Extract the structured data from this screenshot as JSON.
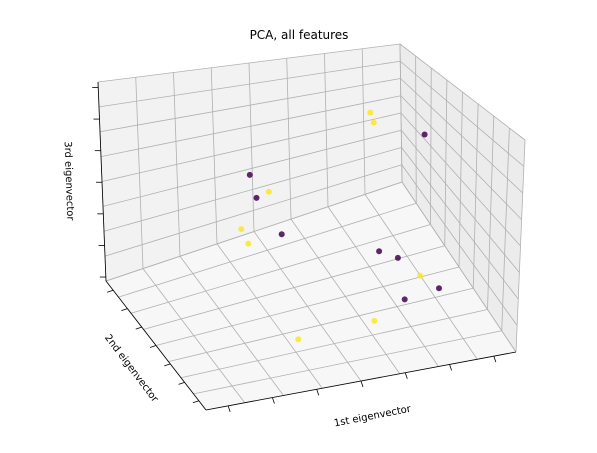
{
  "chart_data": {
    "type": "scatter",
    "title": "PCA, all features",
    "xlabel": "1st eigenvector",
    "ylabel": "2nd eigenvector",
    "zlabel": "3rd eigenvector",
    "projection": "3d",
    "view": {
      "elev": -150,
      "azim": 110
    },
    "grid": true,
    "tick_labels_shown": false,
    "xlim": [
      -4,
      4
    ],
    "ylim": [
      -3,
      3
    ],
    "zlim": [
      -2,
      2
    ],
    "colormap": "viridis",
    "colors": {
      "class_0": "#440154",
      "class_1": "#fde725"
    },
    "points": [
      {
        "x": 2.6,
        "y": -1.0,
        "z": 1.9,
        "c": 0
      },
      {
        "x": 1.8,
        "y": 0.1,
        "z": 1.9,
        "c": 1
      },
      {
        "x": 1.9,
        "y": 0.5,
        "z": 1.9,
        "c": 1
      },
      {
        "x": -0.6,
        "y": 0.9,
        "z": 0.4,
        "c": 1
      },
      {
        "x": -0.4,
        "y": 2.4,
        "z": -0.2,
        "c": 0
      },
      {
        "x": -0.6,
        "y": 1.6,
        "z": -0.2,
        "c": 0
      },
      {
        "x": -0.4,
        "y": 0.6,
        "z": -0.5,
        "c": 0
      },
      {
        "x": -1.1,
        "y": 1.4,
        "z": -0.7,
        "c": 1
      },
      {
        "x": -1.1,
        "y": 1.0,
        "z": -0.8,
        "c": 1
      },
      {
        "x": 1.6,
        "y": -0.6,
        "z": -0.7,
        "c": 0
      },
      {
        "x": 1.9,
        "y": -1.0,
        "z": -0.7,
        "c": 0
      },
      {
        "x": 2.1,
        "y": -1.8,
        "z": -0.7,
        "c": 1
      },
      {
        "x": 2.3,
        "y": -2.4,
        "z": -0.7,
        "c": 0
      },
      {
        "x": 1.6,
        "y": -2.0,
        "z": -1.0,
        "c": 0
      },
      {
        "x": 1.0,
        "y": -1.6,
        "z": -1.6,
        "c": 1
      },
      {
        "x": -0.8,
        "y": -1.2,
        "z": -1.9,
        "c": 1
      }
    ]
  }
}
